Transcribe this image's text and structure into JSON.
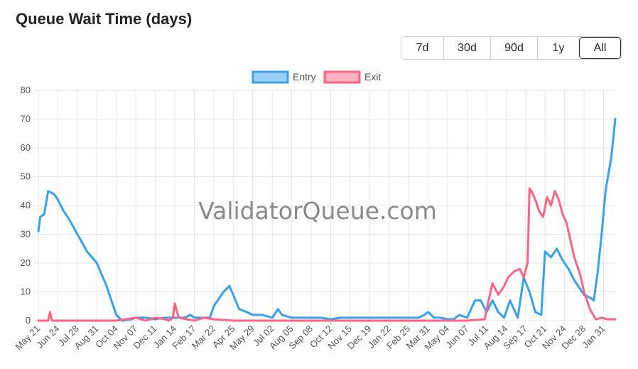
{
  "page": {
    "title": "Queue Wait Time (days)"
  },
  "range_buttons": [
    {
      "label": "7d",
      "active": false
    },
    {
      "label": "30d",
      "active": false
    },
    {
      "label": "90d",
      "active": false
    },
    {
      "label": "1y",
      "active": false
    },
    {
      "label": "All",
      "active": true
    }
  ],
  "watermark": "ValidatorQueue.com",
  "colors": {
    "entry": "#36a2eb",
    "exit": "#ff6384",
    "entry_fill": "#9ad0f5",
    "exit_fill": "#ffb1c1",
    "grid": "#e6e6e6"
  },
  "chart_data": {
    "type": "line",
    "title": "Queue Wait Time (days)",
    "xlabel": "",
    "ylabel": "",
    "ylim": [
      0,
      80
    ],
    "yticks": [
      "0",
      "10",
      "20",
      "30",
      "40",
      "50",
      "60",
      "70",
      "80"
    ],
    "grid": true,
    "legend_position": "top",
    "x_labels": [
      "May 21",
      "Jun 24",
      "Jul 28",
      "Aug 31",
      "Oct 04",
      "Nov 07",
      "Dec 11",
      "Jan 14",
      "Feb 17",
      "Mar 22",
      "Apr 25",
      "May 29",
      "Jul 02",
      "Aug 05",
      "Sep 08",
      "Oct 12",
      "Nov 15",
      "Dec 19",
      "Jan 22",
      "Feb 25",
      "Mar 31",
      "May 04",
      "Jun 07",
      "Jul 11",
      "Aug 14",
      "Sep 17",
      "Oct 21",
      "Nov 24",
      "Dec 28",
      "Jan 31"
    ],
    "series": [
      {
        "name": "Entry",
        "color": "#36a2eb",
        "x": [
          0,
          0.1,
          0.3,
          0.5,
          0.8,
          1.0,
          1.3,
          1.6,
          2.0,
          2.5,
          3.0,
          3.5,
          3.8,
          4.0,
          4.3,
          4.8,
          5.0,
          5.5,
          6.0,
          6.5,
          7.0,
          7.5,
          7.8,
          8.0,
          8.5,
          8.8,
          9.0,
          9.3,
          9.5,
          9.8,
          10.0,
          10.3,
          10.7,
          11.0,
          11.5,
          12.0,
          12.3,
          12.5,
          13.0,
          13.5,
          14.0,
          14.5,
          15.0,
          15.5,
          16.0,
          16.5,
          17.0,
          17.5,
          18.0,
          18.5,
          19.0,
          19.5,
          19.8,
          20.0,
          20.3,
          20.6,
          21.0,
          21.3,
          21.6,
          22.0,
          22.4,
          22.7,
          23.0,
          23.3,
          23.6,
          23.9,
          24.2,
          24.6,
          24.9,
          25.2,
          25.5,
          25.8,
          26.0,
          26.3,
          26.6,
          26.9,
          27.2,
          27.5,
          27.8,
          28.0,
          28.3,
          28.5,
          28.7,
          28.9,
          29.1,
          29.4,
          29.6
        ],
        "y": [
          31,
          36,
          37,
          45,
          44,
          42,
          38,
          35,
          30,
          24,
          20,
          12,
          6,
          2,
          0,
          0.5,
          1,
          1,
          0.5,
          1,
          1,
          1,
          2,
          1,
          1,
          1,
          5,
          8,
          10,
          12,
          9,
          4,
          3,
          2,
          2,
          1,
          4,
          2,
          1,
          1,
          1,
          1,
          0.5,
          1,
          1,
          1,
          1,
          1,
          1,
          1,
          1,
          1,
          2,
          3,
          1,
          1,
          0.5,
          0.5,
          2,
          1,
          7,
          7,
          3,
          7,
          3,
          1,
          7,
          1,
          15,
          10,
          3,
          2,
          24,
          22,
          25,
          21,
          18,
          14,
          11,
          9,
          8,
          7,
          17,
          30,
          45,
          57,
          70
        ]
      },
      {
        "name": "Exit",
        "color": "#ff6384",
        "x": [
          0,
          0.5,
          0.6,
          0.7,
          1.0,
          4.0,
          5.0,
          5.5,
          6.0,
          6.5,
          6.7,
          6.9,
          7.0,
          7.2,
          8.0,
          8.5,
          9.0,
          10.0,
          12.0,
          14.0,
          16.0,
          18.0,
          20.0,
          22.0,
          22.9,
          23.1,
          23.3,
          23.6,
          23.9,
          24.1,
          24.4,
          24.7,
          24.9,
          25.1,
          25.2,
          25.3,
          25.5,
          25.7,
          25.9,
          26.1,
          26.3,
          26.5,
          26.7,
          26.9,
          27.1,
          27.3,
          27.5,
          27.8,
          28.0,
          28.3,
          28.6,
          28.9,
          29.2,
          29.6
        ],
        "y": [
          0,
          0,
          3,
          0,
          0,
          0,
          1,
          0,
          1,
          0.5,
          0,
          1,
          6,
          1,
          0,
          1,
          0.5,
          0,
          0,
          0,
          0,
          0,
          0,
          0,
          0.5,
          7,
          13,
          9,
          12,
          15,
          17,
          18,
          15,
          20,
          46,
          45,
          42,
          38,
          36,
          43,
          40,
          45,
          42,
          37,
          34,
          28,
          22,
          16,
          10,
          4,
          0.5,
          1,
          0.5,
          0.5
        ]
      }
    ]
  }
}
